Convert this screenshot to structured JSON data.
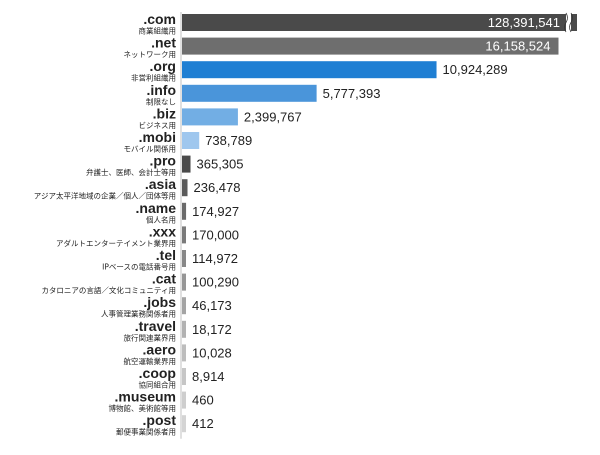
{
  "chart_data": {
    "type": "bar",
    "orientation": "horizontal",
    "title": "",
    "xlabel": "",
    "ylabel": "",
    "axis_break": true,
    "categories": [
      ".com",
      ".net",
      ".org",
      ".info",
      ".biz",
      ".mobi",
      ".pro",
      ".asia",
      ".name",
      ".xxx",
      ".tel",
      ".cat",
      ".jobs",
      ".travel",
      ".aero",
      ".coop",
      ".museum",
      ".post"
    ],
    "descriptions": [
      "商業組織用",
      "ネットワーク用",
      "非営利組織用",
      "制限なし",
      "ビジネス用",
      "モバイル関係用",
      "弁護士、医師、会計士等用",
      "アジア太平洋地域の企業／個人／団体等用",
      "個人名用",
      "アダルトエンターテイメント業界用",
      "IPベースの電話番号用",
      "カタロニアの言語／文化コミュニティ用",
      "人事管理業務関係者用",
      "旅行関連業界用",
      "航空運輸業界用",
      "協同組合用",
      "博物館、美術館等用",
      "郵便事業関係者用"
    ],
    "values": [
      128391541,
      16158524,
      10924289,
      5777393,
      2399767,
      738789,
      365305,
      236478,
      174927,
      170000,
      114972,
      100290,
      46173,
      18172,
      10028,
      8914,
      460,
      412
    ],
    "value_labels": [
      "128,391,541",
      "16,158,524",
      "10,924,289",
      "5,777,393",
      "2,399,767",
      "738,789",
      "365,305",
      "236,478",
      "174,927",
      "170,000",
      "114,972",
      "100,290",
      "46,173",
      "18,172",
      "10,028",
      "8,914",
      "460",
      "412"
    ],
    "colors": [
      "#4a4a4a",
      "#6e6e6e",
      "#1f7fd3",
      "#4a95da",
      "#72aee4",
      "#9fc7ee",
      "#4a4a4a",
      "#5a5a5a",
      "#6a6a6a",
      "#7a7a7a",
      "#888888",
      "#969696",
      "#a4a4a4",
      "#b2b2b2",
      "#bdbdbd",
      "#c6c6c6",
      "#cecece",
      "#d4d4d4"
    ]
  }
}
